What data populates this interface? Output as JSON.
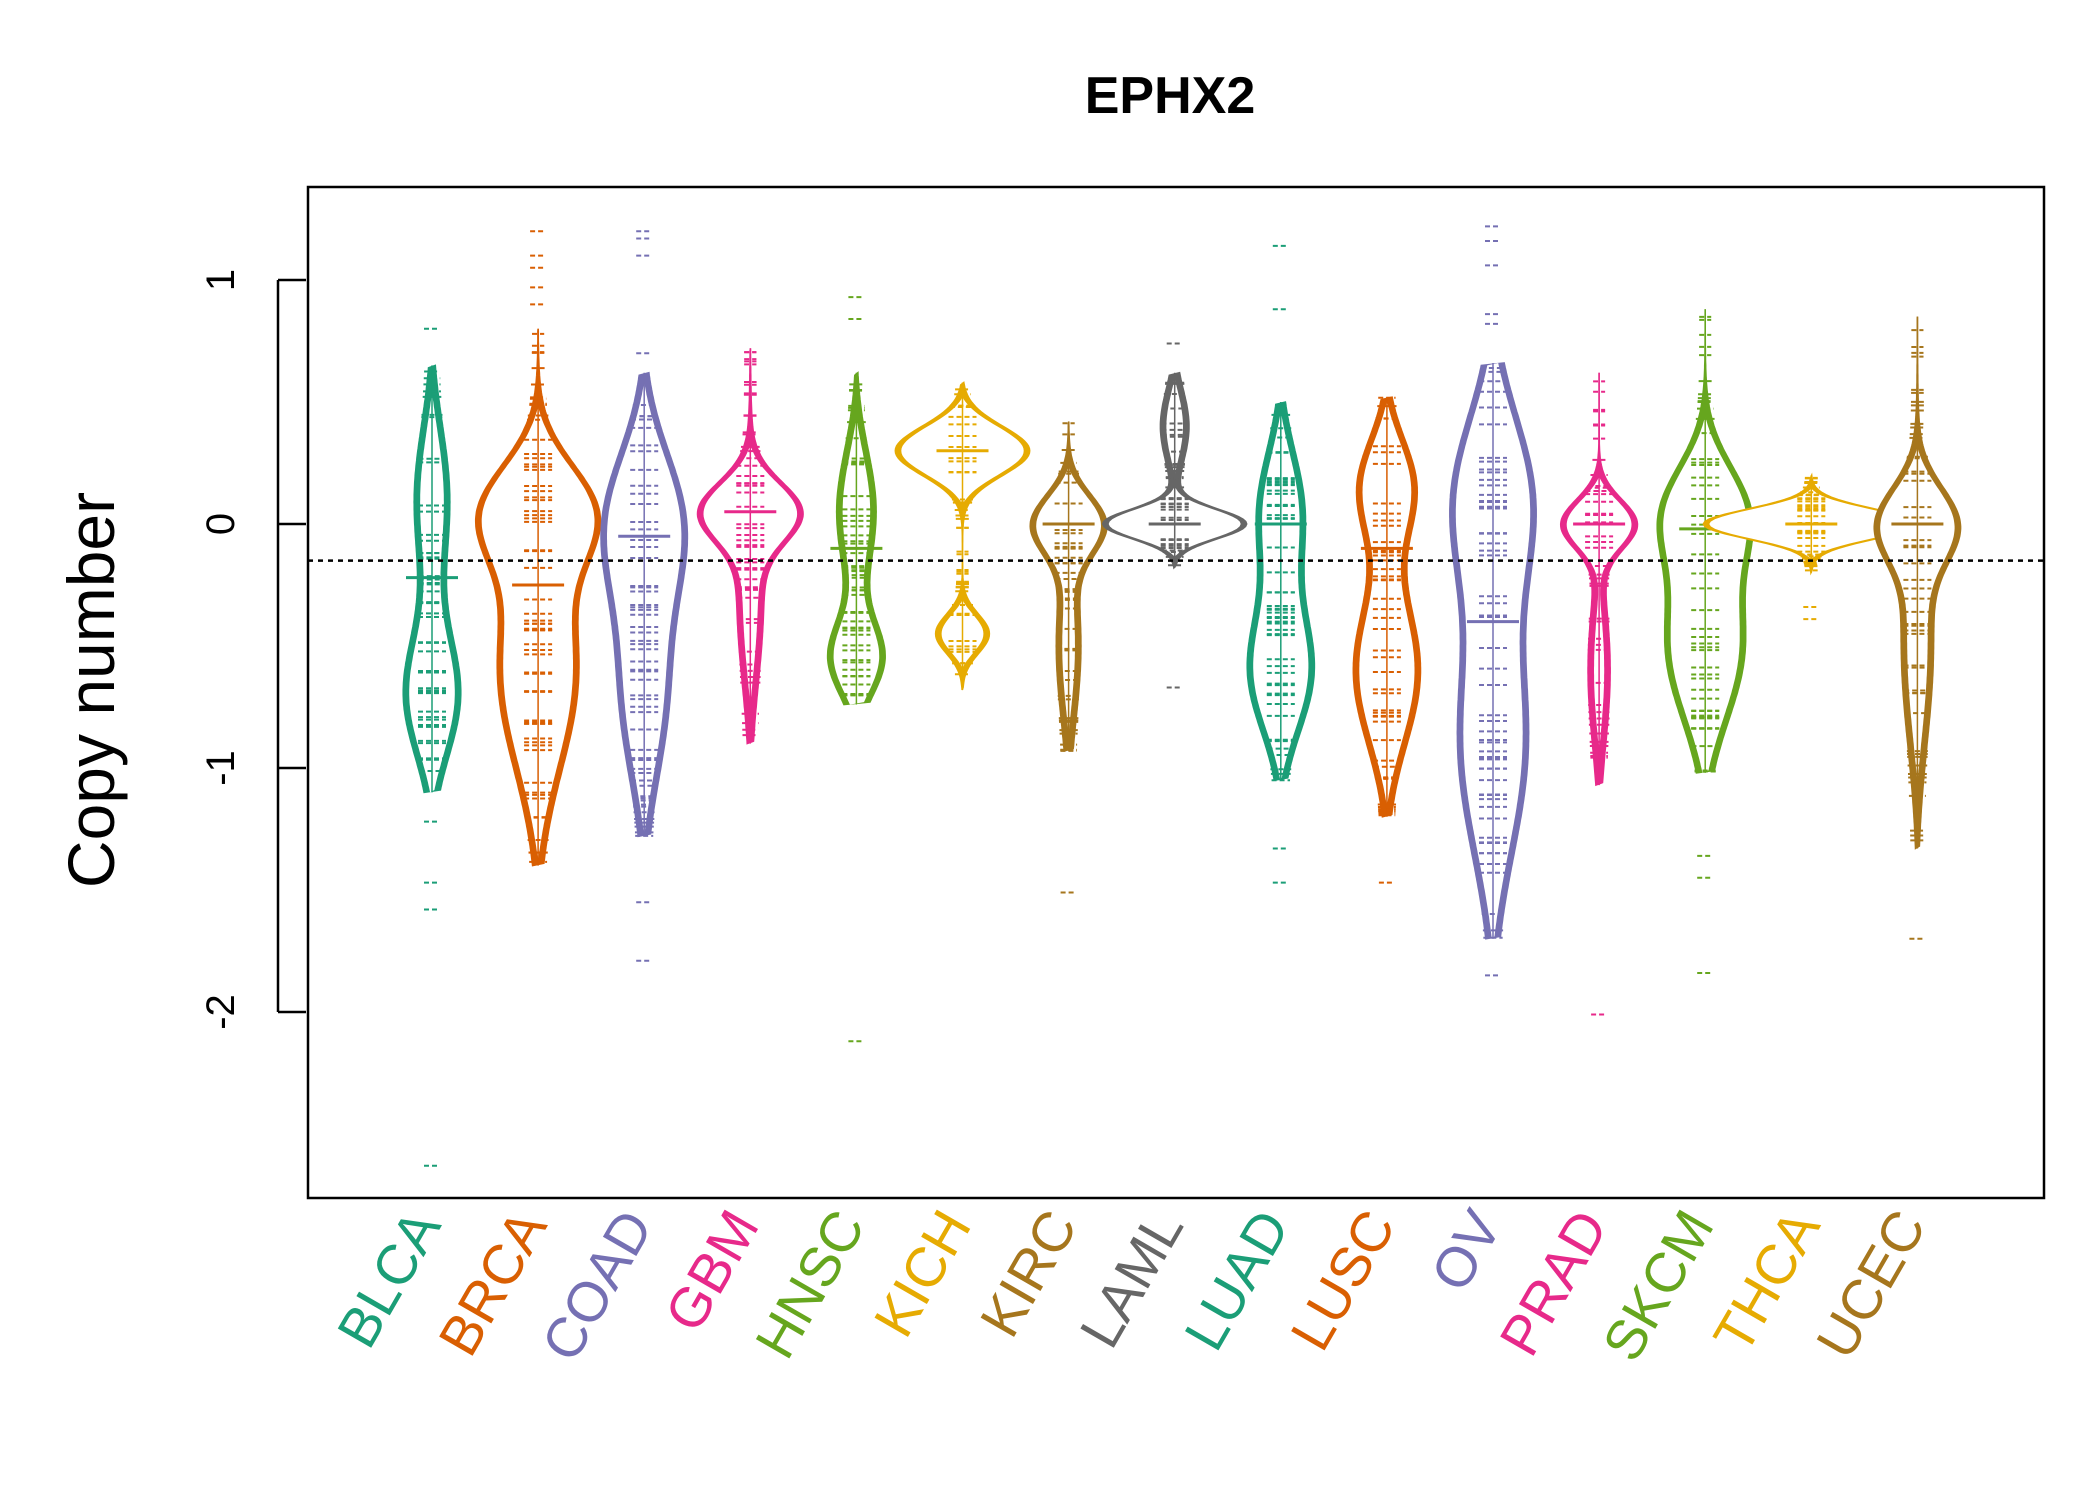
{
  "chart_data": {
    "type": "beanplot",
    "title": "EPHX2",
    "ylabel": "Copy number",
    "xlabel": "",
    "ylim": [
      -2.75,
      1.38
    ],
    "yticks": [
      1,
      0,
      -1,
      -2
    ],
    "ytick_labels": [
      "1",
      "0",
      "-1",
      "-2"
    ],
    "reference_line": -0.15,
    "categories": [
      {
        "name": "BLCA",
        "color": "#1B9E77",
        "median": -0.2,
        "mean": -0.22,
        "lo": -1.1,
        "hi": 0.65,
        "maxw": 0.12,
        "scale": 0.7,
        "extra": [
          0.8,
          -1.22,
          -1.47,
          -1.58,
          -2.63
        ],
        "peaks": [
          {
            "c": 0.1,
            "s": 0.3,
            "w": 0.5
          },
          {
            "c": -0.7,
            "s": 0.25,
            "w": 0.8
          }
        ]
      },
      {
        "name": "BRCA",
        "color": "#D95F02",
        "median": 0.0,
        "mean": -0.25,
        "lo": -1.4,
        "hi": 0.8,
        "maxw": 0.26,
        "scale": 0.9,
        "extra": [
          1.2,
          1.1,
          1.05,
          0.97,
          0.9
        ],
        "peaks": [
          {
            "c": 0.05,
            "s": 0.2,
            "w": 1.0
          },
          {
            "c": -0.6,
            "s": 0.4,
            "w": 0.8
          }
        ]
      },
      {
        "name": "COAD",
        "color": "#7570B3",
        "median": 0.0,
        "mean": -0.05,
        "lo": -1.28,
        "hi": 0.62,
        "maxw": 0.18,
        "scale": 0.8,
        "extra": [
          1.2,
          1.17,
          1.1,
          0.7,
          -1.55,
          -1.79
        ],
        "peaks": [
          {
            "c": 0.0,
            "s": 0.3,
            "w": 1.0
          },
          {
            "c": -0.7,
            "s": 0.35,
            "w": 0.6
          }
        ]
      },
      {
        "name": "GBM",
        "color": "#E7298A",
        "median": 0.05,
        "mean": 0.05,
        "lo": -0.9,
        "hi": 0.72,
        "maxw": 0.22,
        "scale": 0.7,
        "extra": [],
        "peaks": [
          {
            "c": 0.05,
            "s": 0.12,
            "w": 1.0
          },
          {
            "c": -0.3,
            "s": 0.35,
            "w": 0.3
          }
        ]
      },
      {
        "name": "HNSC",
        "color": "#66A61E",
        "median": 0.0,
        "mean": -0.1,
        "lo": -0.74,
        "hi": 0.62,
        "maxw": 0.12,
        "scale": 0.7,
        "extra": [
          0.93,
          0.84,
          -2.12
        ],
        "peaks": [
          {
            "c": 0.05,
            "s": 0.25,
            "w": 0.5
          },
          {
            "c": -0.55,
            "s": 0.15,
            "w": 0.7
          }
        ]
      },
      {
        "name": "KICH",
        "color": "#E6AB02",
        "median": 0.3,
        "mean": 0.3,
        "lo": -0.68,
        "hi": 0.58,
        "maxw": 0.28,
        "scale": 0.6,
        "extra": [],
        "peaks": [
          {
            "c": 0.3,
            "s": 0.1,
            "w": 1.0
          },
          {
            "c": -0.45,
            "s": 0.08,
            "w": 0.4
          }
        ]
      },
      {
        "name": "KIRC",
        "color": "#A6761D",
        "median": 0.0,
        "mean": 0.0,
        "lo": -0.93,
        "hi": 0.42,
        "maxw": 0.16,
        "scale": 0.6,
        "extra": [
          -1.51
        ],
        "peaks": [
          {
            "c": 0.0,
            "s": 0.12,
            "w": 1.0
          },
          {
            "c": -0.5,
            "s": 0.3,
            "w": 0.35
          }
        ]
      },
      {
        "name": "LAML",
        "color": "#666666",
        "median": 0.0,
        "mean": 0.0,
        "lo": -0.18,
        "hi": 0.62,
        "maxw": 0.3,
        "scale": 0.5,
        "extra": [
          0.74,
          -0.67
        ],
        "peaks": [
          {
            "c": 0.0,
            "s": 0.06,
            "w": 1.0
          },
          {
            "c": 0.4,
            "s": 0.15,
            "w": 0.2
          }
        ]
      },
      {
        "name": "LUAD",
        "color": "#1B9E77",
        "median": 0.0,
        "mean": 0.0,
        "lo": -1.05,
        "hi": 0.5,
        "maxw": 0.14,
        "scale": 0.7,
        "extra": [
          1.14,
          0.88,
          -1.33,
          -1.47
        ],
        "peaks": [
          {
            "c": 0.05,
            "s": 0.25,
            "w": 0.5
          },
          {
            "c": -0.6,
            "s": 0.25,
            "w": 0.7
          }
        ]
      },
      {
        "name": "LUSC",
        "color": "#D95F02",
        "median": 0.0,
        "mean": -0.1,
        "lo": -1.2,
        "hi": 0.52,
        "maxw": 0.14,
        "scale": 0.7,
        "extra": [
          -1.47
        ],
        "peaks": [
          {
            "c": 0.15,
            "s": 0.2,
            "w": 0.6
          },
          {
            "c": -0.6,
            "s": 0.3,
            "w": 0.7
          }
        ]
      },
      {
        "name": "OV",
        "color": "#7570B3",
        "median": -0.5,
        "mean": -0.4,
        "lo": -1.7,
        "hi": 0.66,
        "maxw": 0.18,
        "scale": 0.8,
        "extra": [
          1.22,
          1.16,
          1.06,
          0.86,
          0.82,
          -1.85
        ],
        "peaks": [
          {
            "c": 0.1,
            "s": 0.35,
            "w": 0.8
          },
          {
            "c": -0.9,
            "s": 0.45,
            "w": 0.7
          }
        ]
      },
      {
        "name": "PRAD",
        "color": "#E7298A",
        "median": 0.0,
        "mean": 0.0,
        "lo": -1.07,
        "hi": 0.62,
        "maxw": 0.16,
        "scale": 0.6,
        "extra": [
          -2.01
        ],
        "peaks": [
          {
            "c": 0.0,
            "s": 0.1,
            "w": 1.0
          },
          {
            "c": -0.6,
            "s": 0.3,
            "w": 0.3
          }
        ]
      },
      {
        "name": "SKCM",
        "color": "#66A61E",
        "median": -0.02,
        "mean": -0.02,
        "lo": -1.02,
        "hi": 0.88,
        "maxw": 0.2,
        "scale": 0.7,
        "extra": [
          -1.36,
          -1.45,
          -1.84
        ],
        "peaks": [
          {
            "c": 0.05,
            "s": 0.2,
            "w": 0.6
          },
          {
            "c": -0.5,
            "s": 0.3,
            "w": 0.6
          }
        ]
      },
      {
        "name": "THCA",
        "color": "#E6AB02",
        "median": 0.0,
        "mean": 0.0,
        "lo": -0.2,
        "hi": 0.2,
        "maxw": 0.45,
        "scale": 0.5,
        "extra": [
          -0.34,
          -0.39
        ],
        "peaks": [
          {
            "c": 0.0,
            "s": 0.06,
            "w": 1.0
          }
        ]
      },
      {
        "name": "UCEC",
        "color": "#A6761D",
        "median": 0.0,
        "mean": 0.0,
        "lo": -1.33,
        "hi": 0.85,
        "maxw": 0.18,
        "scale": 0.7,
        "extra": [
          -1.7
        ],
        "peaks": [
          {
            "c": 0.0,
            "s": 0.15,
            "w": 1.0
          },
          {
            "c": -0.5,
            "s": 0.4,
            "w": 0.45
          }
        ]
      }
    ]
  }
}
